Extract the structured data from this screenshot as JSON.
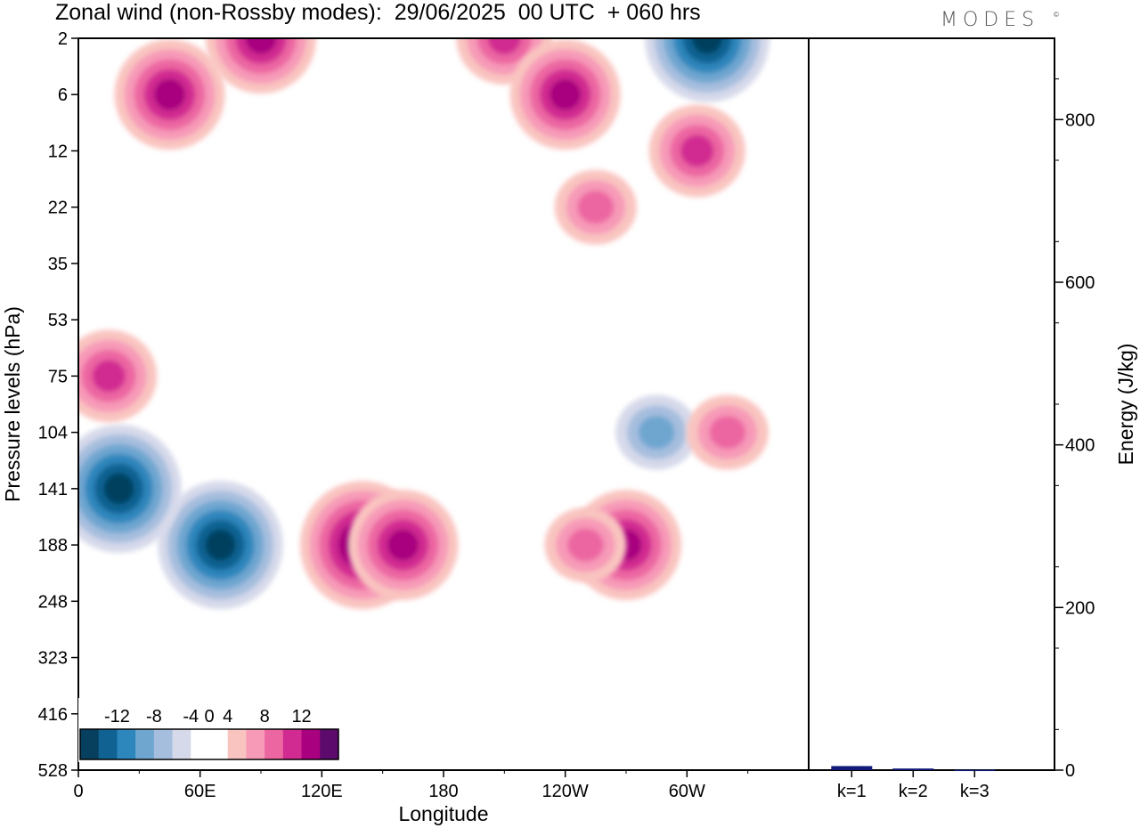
{
  "title": "Zonal wind (non-Rossby modes):  29/06/2025  00 UTC  + 060 hrs",
  "logo": "MODES",
  "logo_mark": "©",
  "colors": {
    "neg": [
      "#06405e",
      "#0f6292",
      "#2d86bc",
      "#6ea6d0",
      "#a6bede",
      "#d6d9ea"
    ],
    "zero": "#ffffff",
    "pos": [
      "#f9c4c0",
      "#f79ab8",
      "#ec66a2",
      "#d12a91",
      "#a8007f",
      "#5c0a6b"
    ],
    "bar": "#101a7a"
  },
  "chart_data": [
    {
      "type": "heatmap",
      "title": "Zonal wind (non-Rossby modes):  29/06/2025  00 UTC  + 060 hrs",
      "xlabel": "Longitude",
      "ylabel": "Pressure levels (hPa)",
      "x_ticks": [
        "0",
        "60E",
        "120E",
        "180",
        "120W",
        "60W"
      ],
      "y_ticks": [
        "2",
        "6",
        "12",
        "22",
        "35",
        "53",
        "75",
        "104",
        "141",
        "188",
        "248",
        "323",
        "416",
        "528"
      ],
      "colorbar_ticks": [
        "-12",
        "-8",
        "-4",
        "0",
        "4",
        "8",
        "12"
      ],
      "colorbar_levels": [
        -14,
        -12,
        -10,
        -8,
        -6,
        -4,
        -2,
        2,
        4,
        6,
        8,
        10,
        12,
        14
      ],
      "features": [
        {
          "lon": 140,
          "level": "188",
          "value": 12
        },
        {
          "lon": 160,
          "level": "188",
          "value": 9
        },
        {
          "lon": 270,
          "level": "188",
          "value": 9
        },
        {
          "lon": 250,
          "level": "188",
          "value": 6
        },
        {
          "lon": 70,
          "level": "188",
          "value": -12
        },
        {
          "lon": 20,
          "level": "141",
          "value": -11
        },
        {
          "lon": 15,
          "level": "75",
          "value": 8
        },
        {
          "lon": 285,
          "level": "104",
          "value": -6
        },
        {
          "lon": 320,
          "level": "104",
          "value": 6
        },
        {
          "lon": 310,
          "level": "2",
          "value": -12
        },
        {
          "lon": 45,
          "level": "6",
          "value": 10
        },
        {
          "lon": 90,
          "level": "2",
          "value": 9
        },
        {
          "lon": 210,
          "level": "2",
          "value": 8
        },
        {
          "lon": 240,
          "level": "6",
          "value": 9
        },
        {
          "lon": 305,
          "level": "12",
          "value": 8
        },
        {
          "lon": 255,
          "level": "22",
          "value": 5
        }
      ]
    },
    {
      "type": "bar",
      "ylabel": "Energy (J/kg)",
      "categories": [
        "k=1",
        "k=2",
        "k=3"
      ],
      "values": [
        5,
        2,
        0.5
      ],
      "ylim": [
        0,
        900
      ],
      "y_ticks": [
        0,
        200,
        400,
        600,
        800
      ]
    }
  ]
}
